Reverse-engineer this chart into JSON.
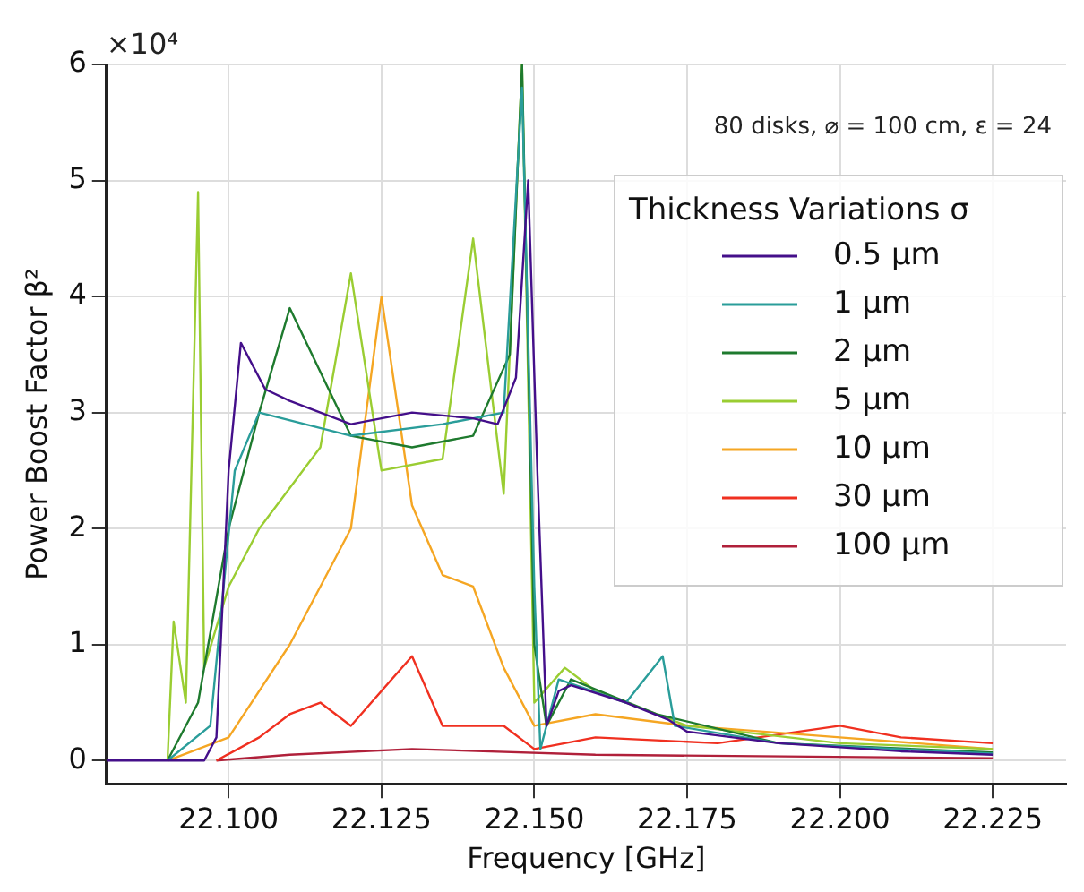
{
  "chart_data": {
    "type": "line",
    "xlabel": "Frequency [GHz]",
    "ylabel": "Power Boost Factor β²",
    "legend_title": "Thickness Variations σ",
    "annotations": [
      "×10⁴",
      "80 disks, ⌀ = 100 cm, ε = 24"
    ],
    "xlim": [
      22.08,
      22.237
    ],
    "xticks": [
      {
        "value": 22.1,
        "label": "22.100"
      },
      {
        "value": 22.125,
        "label": "22.125"
      },
      {
        "value": 22.15,
        "label": "22.150"
      },
      {
        "value": 22.175,
        "label": "22.175"
      },
      {
        "value": 22.2,
        "label": "22.200"
      },
      {
        "value": 22.225,
        "label": "22.225"
      }
    ],
    "ylim": [
      -0.2,
      6
    ],
    "yticks": [
      0,
      1,
      2,
      3,
      4,
      5,
      6
    ],
    "grid": true,
    "legend": "right",
    "marker": "none",
    "line_style": "solid",
    "series": [
      {
        "name": "0.5 μm",
        "color": "#440f8a",
        "x": [
          22.08,
          22.096,
          22.098,
          22.1,
          22.102,
          22.106,
          22.11,
          22.12,
          22.13,
          22.14,
          22.144,
          22.147,
          22.149,
          22.1505,
          22.152,
          22.154,
          22.156,
          22.165,
          22.172,
          22.175,
          22.19,
          22.21,
          22.225
        ],
        "values": [
          0,
          0,
          0.2,
          2.5,
          3.6,
          3.2,
          3.1,
          2.9,
          3.0,
          2.95,
          2.9,
          3.3,
          5.0,
          2.5,
          0.3,
          0.6,
          0.65,
          0.5,
          0.35,
          0.25,
          0.15,
          0.08,
          0.05
        ]
      },
      {
        "name": "1 μm",
        "color": "#2a9d9a",
        "x": [
          22.09,
          22.097,
          22.101,
          22.105,
          22.12,
          22.135,
          22.145,
          22.148,
          22.15,
          22.151,
          22.154,
          22.165,
          22.171,
          22.173,
          22.19,
          22.225
        ],
        "values": [
          0,
          0.3,
          2.5,
          3.0,
          2.8,
          2.9,
          3.0,
          5.8,
          1.5,
          0.1,
          0.7,
          0.5,
          0.9,
          0.3,
          0.15,
          0.06
        ]
      },
      {
        "name": "2 μm",
        "color": "#1e7a2e",
        "x": [
          22.09,
          22.095,
          22.1,
          22.105,
          22.11,
          22.12,
          22.13,
          22.14,
          22.146,
          22.148,
          22.15,
          22.152,
          22.156,
          22.17,
          22.19,
          22.225
        ],
        "values": [
          0,
          0.5,
          2.0,
          3.0,
          3.9,
          2.8,
          2.7,
          2.8,
          3.5,
          6.0,
          1.0,
          0.3,
          0.7,
          0.4,
          0.15,
          0.07
        ]
      },
      {
        "name": "5 μm",
        "color": "#9acd32",
        "x": [
          22.09,
          22.091,
          22.093,
          22.095,
          22.096,
          22.1,
          22.105,
          22.115,
          22.12,
          22.125,
          22.135,
          22.14,
          22.145,
          22.148,
          22.15,
          22.155,
          22.16,
          22.175,
          22.2,
          22.225
        ],
        "values": [
          0,
          1.2,
          0.5,
          4.9,
          0.8,
          1.5,
          2.0,
          2.7,
          4.2,
          2.5,
          2.6,
          4.5,
          2.3,
          6.0,
          0.5,
          0.8,
          0.6,
          0.3,
          0.15,
          0.1
        ]
      },
      {
        "name": "10 μm",
        "color": "#f5a623",
        "x": [
          22.09,
          22.1,
          22.11,
          22.12,
          22.125,
          22.13,
          22.135,
          22.14,
          22.145,
          22.15,
          22.16,
          22.175,
          22.2,
          22.225
        ],
        "values": [
          0,
          0.2,
          1.0,
          2.0,
          4.0,
          2.2,
          1.6,
          1.5,
          0.8,
          0.3,
          0.4,
          0.3,
          0.2,
          0.1
        ]
      },
      {
        "name": "30 μm",
        "color": "#f03020",
        "x": [
          22.098,
          22.105,
          22.11,
          22.115,
          22.12,
          22.13,
          22.135,
          22.145,
          22.15,
          22.16,
          22.18,
          22.2,
          22.21,
          22.225
        ],
        "values": [
          0,
          0.2,
          0.4,
          0.5,
          0.3,
          0.9,
          0.3,
          0.3,
          0.1,
          0.2,
          0.15,
          0.3,
          0.2,
          0.15
        ]
      },
      {
        "name": "100 μm",
        "color": "#b0203a",
        "x": [
          22.098,
          22.11,
          22.13,
          22.16,
          22.225
        ],
        "values": [
          0,
          0.05,
          0.1,
          0.05,
          0.02
        ]
      }
    ]
  }
}
